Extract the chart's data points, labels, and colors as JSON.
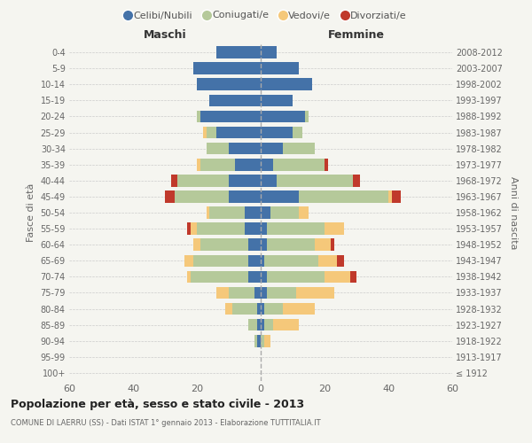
{
  "age_groups": [
    "100+",
    "95-99",
    "90-94",
    "85-89",
    "80-84",
    "75-79",
    "70-74",
    "65-69",
    "60-64",
    "55-59",
    "50-54",
    "45-49",
    "40-44",
    "35-39",
    "30-34",
    "25-29",
    "20-24",
    "15-19",
    "10-14",
    "5-9",
    "0-4"
  ],
  "birth_years": [
    "≤ 1912",
    "1913-1917",
    "1918-1922",
    "1923-1927",
    "1928-1932",
    "1933-1937",
    "1938-1942",
    "1943-1947",
    "1948-1952",
    "1953-1957",
    "1958-1962",
    "1963-1967",
    "1968-1972",
    "1973-1977",
    "1978-1982",
    "1983-1987",
    "1988-1992",
    "1993-1997",
    "1998-2002",
    "2003-2007",
    "2008-2012"
  ],
  "male": {
    "celibi": [
      0,
      0,
      1,
      1,
      1,
      2,
      4,
      4,
      4,
      5,
      5,
      10,
      10,
      8,
      10,
      14,
      19,
      16,
      20,
      21,
      14
    ],
    "coniugati": [
      0,
      0,
      1,
      3,
      8,
      8,
      18,
      17,
      15,
      15,
      11,
      17,
      16,
      11,
      7,
      3,
      1,
      0,
      0,
      0,
      0
    ],
    "vedovi": [
      0,
      0,
      0,
      0,
      2,
      4,
      1,
      3,
      2,
      2,
      1,
      0,
      0,
      1,
      0,
      1,
      0,
      0,
      0,
      0,
      0
    ],
    "divorziati": [
      0,
      0,
      0,
      0,
      0,
      0,
      0,
      0,
      0,
      1,
      0,
      3,
      2,
      0,
      0,
      0,
      0,
      0,
      0,
      0,
      0
    ]
  },
  "female": {
    "nubili": [
      0,
      0,
      0,
      1,
      1,
      2,
      2,
      1,
      2,
      2,
      3,
      12,
      5,
      4,
      7,
      10,
      14,
      10,
      16,
      12,
      5
    ],
    "coniugate": [
      0,
      0,
      1,
      3,
      6,
      9,
      18,
      17,
      15,
      18,
      9,
      28,
      24,
      16,
      10,
      3,
      1,
      0,
      0,
      0,
      0
    ],
    "vedove": [
      0,
      0,
      2,
      8,
      10,
      12,
      8,
      6,
      5,
      6,
      3,
      1,
      0,
      0,
      0,
      0,
      0,
      0,
      0,
      0,
      0
    ],
    "divorziate": [
      0,
      0,
      0,
      0,
      0,
      0,
      2,
      2,
      1,
      0,
      0,
      3,
      2,
      1,
      0,
      0,
      0,
      0,
      0,
      0,
      0
    ]
  },
  "colors": {
    "celibi": "#4472a8",
    "coniugati": "#b5c99a",
    "vedovi": "#f5c87a",
    "divorziati": "#c0392b"
  },
  "title": "Popolazione per età, sesso e stato civile - 2013",
  "subtitle": "COMUNE DI LAERRU (SS) - Dati ISTAT 1° gennaio 2013 - Elaborazione TUTTITALIA.IT",
  "ylabel": "Fasce di età",
  "ylabel2": "Anni di nascita",
  "xlabel_left": "Maschi",
  "xlabel_right": "Femmine",
  "xlim": 60,
  "bg_color": "#f5f5f0",
  "grid_color": "#cccccc"
}
